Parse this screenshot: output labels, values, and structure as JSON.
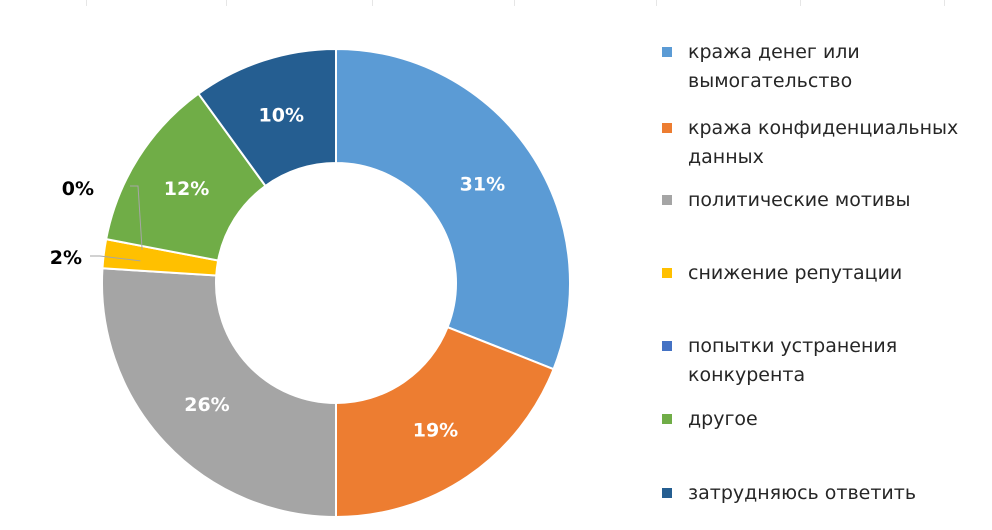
{
  "chart_data": {
    "type": "donut",
    "categories": [
      "кража денег или вымогательство",
      "кража конфиденциальных данных",
      "политические мотивы",
      "снижение репутации",
      "попытки устранения конкурента",
      "другое",
      "затрудняюсь ответить"
    ],
    "values": [
      31,
      19,
      26,
      2,
      0,
      12,
      10
    ],
    "data_labels": [
      "31%",
      "19%",
      "26%",
      "2%",
      "0%",
      "12%",
      "10%"
    ],
    "colors": [
      "#5b9bd5",
      "#ed7d31",
      "#a5a5a5",
      "#ffc000",
      "#4472c4",
      "#70ad47",
      "#255e91"
    ],
    "legend_position": "right"
  }
}
